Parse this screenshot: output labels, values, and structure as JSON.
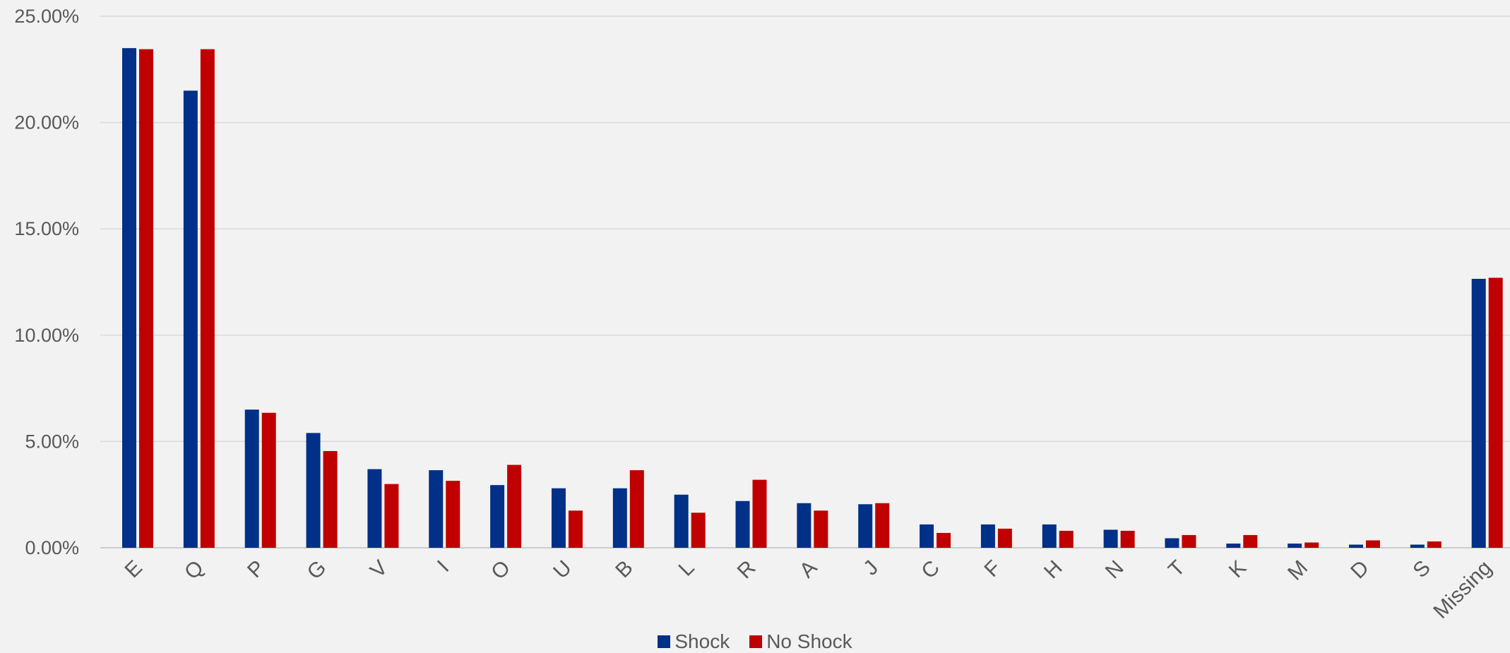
{
  "chart_data": {
    "type": "bar",
    "categories": [
      "E",
      "Q",
      "P",
      "G",
      "V",
      "I",
      "O",
      "U",
      "B",
      "L",
      "R",
      "A",
      "J",
      "C",
      "F",
      "H",
      "N",
      "T",
      "K",
      "M",
      "D",
      "S",
      "Missing"
    ],
    "series": [
      {
        "name": "Shock",
        "color": "#003087",
        "values": [
          23.5,
          21.5,
          6.5,
          5.4,
          3.7,
          3.65,
          2.95,
          2.8,
          2.8,
          2.5,
          2.2,
          2.1,
          2.05,
          1.1,
          1.1,
          1.1,
          0.85,
          0.45,
          0.2,
          0.2,
          0.15,
          0.15,
          12.65
        ]
      },
      {
        "name": "No Shock",
        "color": "#c00000",
        "values": [
          23.45,
          23.45,
          6.35,
          4.55,
          3.0,
          3.15,
          3.9,
          1.75,
          3.65,
          1.65,
          3.2,
          1.75,
          2.1,
          0.7,
          0.9,
          0.8,
          0.8,
          0.6,
          0.6,
          0.25,
          0.35,
          0.3,
          12.7
        ]
      }
    ],
    "ylim": [
      0,
      25
    ],
    "yticks": [
      "0.00%",
      "5.00%",
      "10.00%",
      "15.00%",
      "20.00%",
      "25.00%"
    ],
    "ytick_values": [
      0,
      5,
      10,
      15,
      20,
      25
    ],
    "grid": true,
    "legend_position": "bottom",
    "title": "",
    "xlabel": "",
    "ylabel": ""
  }
}
